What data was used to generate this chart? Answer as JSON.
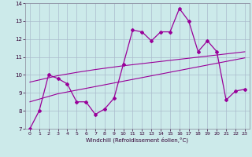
{
  "xlabel": "Windchill (Refroidissement éolien,°C)",
  "x": [
    0,
    1,
    2,
    3,
    4,
    5,
    6,
    7,
    8,
    9,
    10,
    11,
    12,
    13,
    14,
    15,
    16,
    17,
    18,
    19,
    20,
    21,
    22,
    23
  ],
  "y_main": [
    7.0,
    8.0,
    10.0,
    9.8,
    9.5,
    8.5,
    8.5,
    7.8,
    8.1,
    8.7,
    10.6,
    12.5,
    12.4,
    11.9,
    12.4,
    12.4,
    13.7,
    13.0,
    11.3,
    11.9,
    11.3,
    8.6,
    9.1,
    9.2
  ],
  "y_reg_lo": [
    8.5,
    8.65,
    8.8,
    8.95,
    9.05,
    9.15,
    9.25,
    9.35,
    9.45,
    9.55,
    9.65,
    9.75,
    9.85,
    9.95,
    10.05,
    10.15,
    10.25,
    10.35,
    10.45,
    10.55,
    10.65,
    10.75,
    10.85,
    10.95
  ],
  "y_reg_hi": [
    9.6,
    9.72,
    9.84,
    9.96,
    10.05,
    10.14,
    10.22,
    10.3,
    10.37,
    10.44,
    10.51,
    10.57,
    10.63,
    10.69,
    10.75,
    10.81,
    10.87,
    10.93,
    10.99,
    11.05,
    11.11,
    11.17,
    11.23,
    11.29
  ],
  "line_color": "#990099",
  "bg_color": "#cceaea",
  "grid_color": "#aabbcc",
  "ylim": [
    7,
    14
  ],
  "xlim": [
    -0.5,
    23.5
  ],
  "yticks": [
    7,
    8,
    9,
    10,
    11,
    12,
    13,
    14
  ],
  "xticks": [
    0,
    1,
    2,
    3,
    4,
    5,
    6,
    7,
    8,
    9,
    10,
    11,
    12,
    13,
    14,
    15,
    16,
    17,
    18,
    19,
    20,
    21,
    22,
    23
  ]
}
